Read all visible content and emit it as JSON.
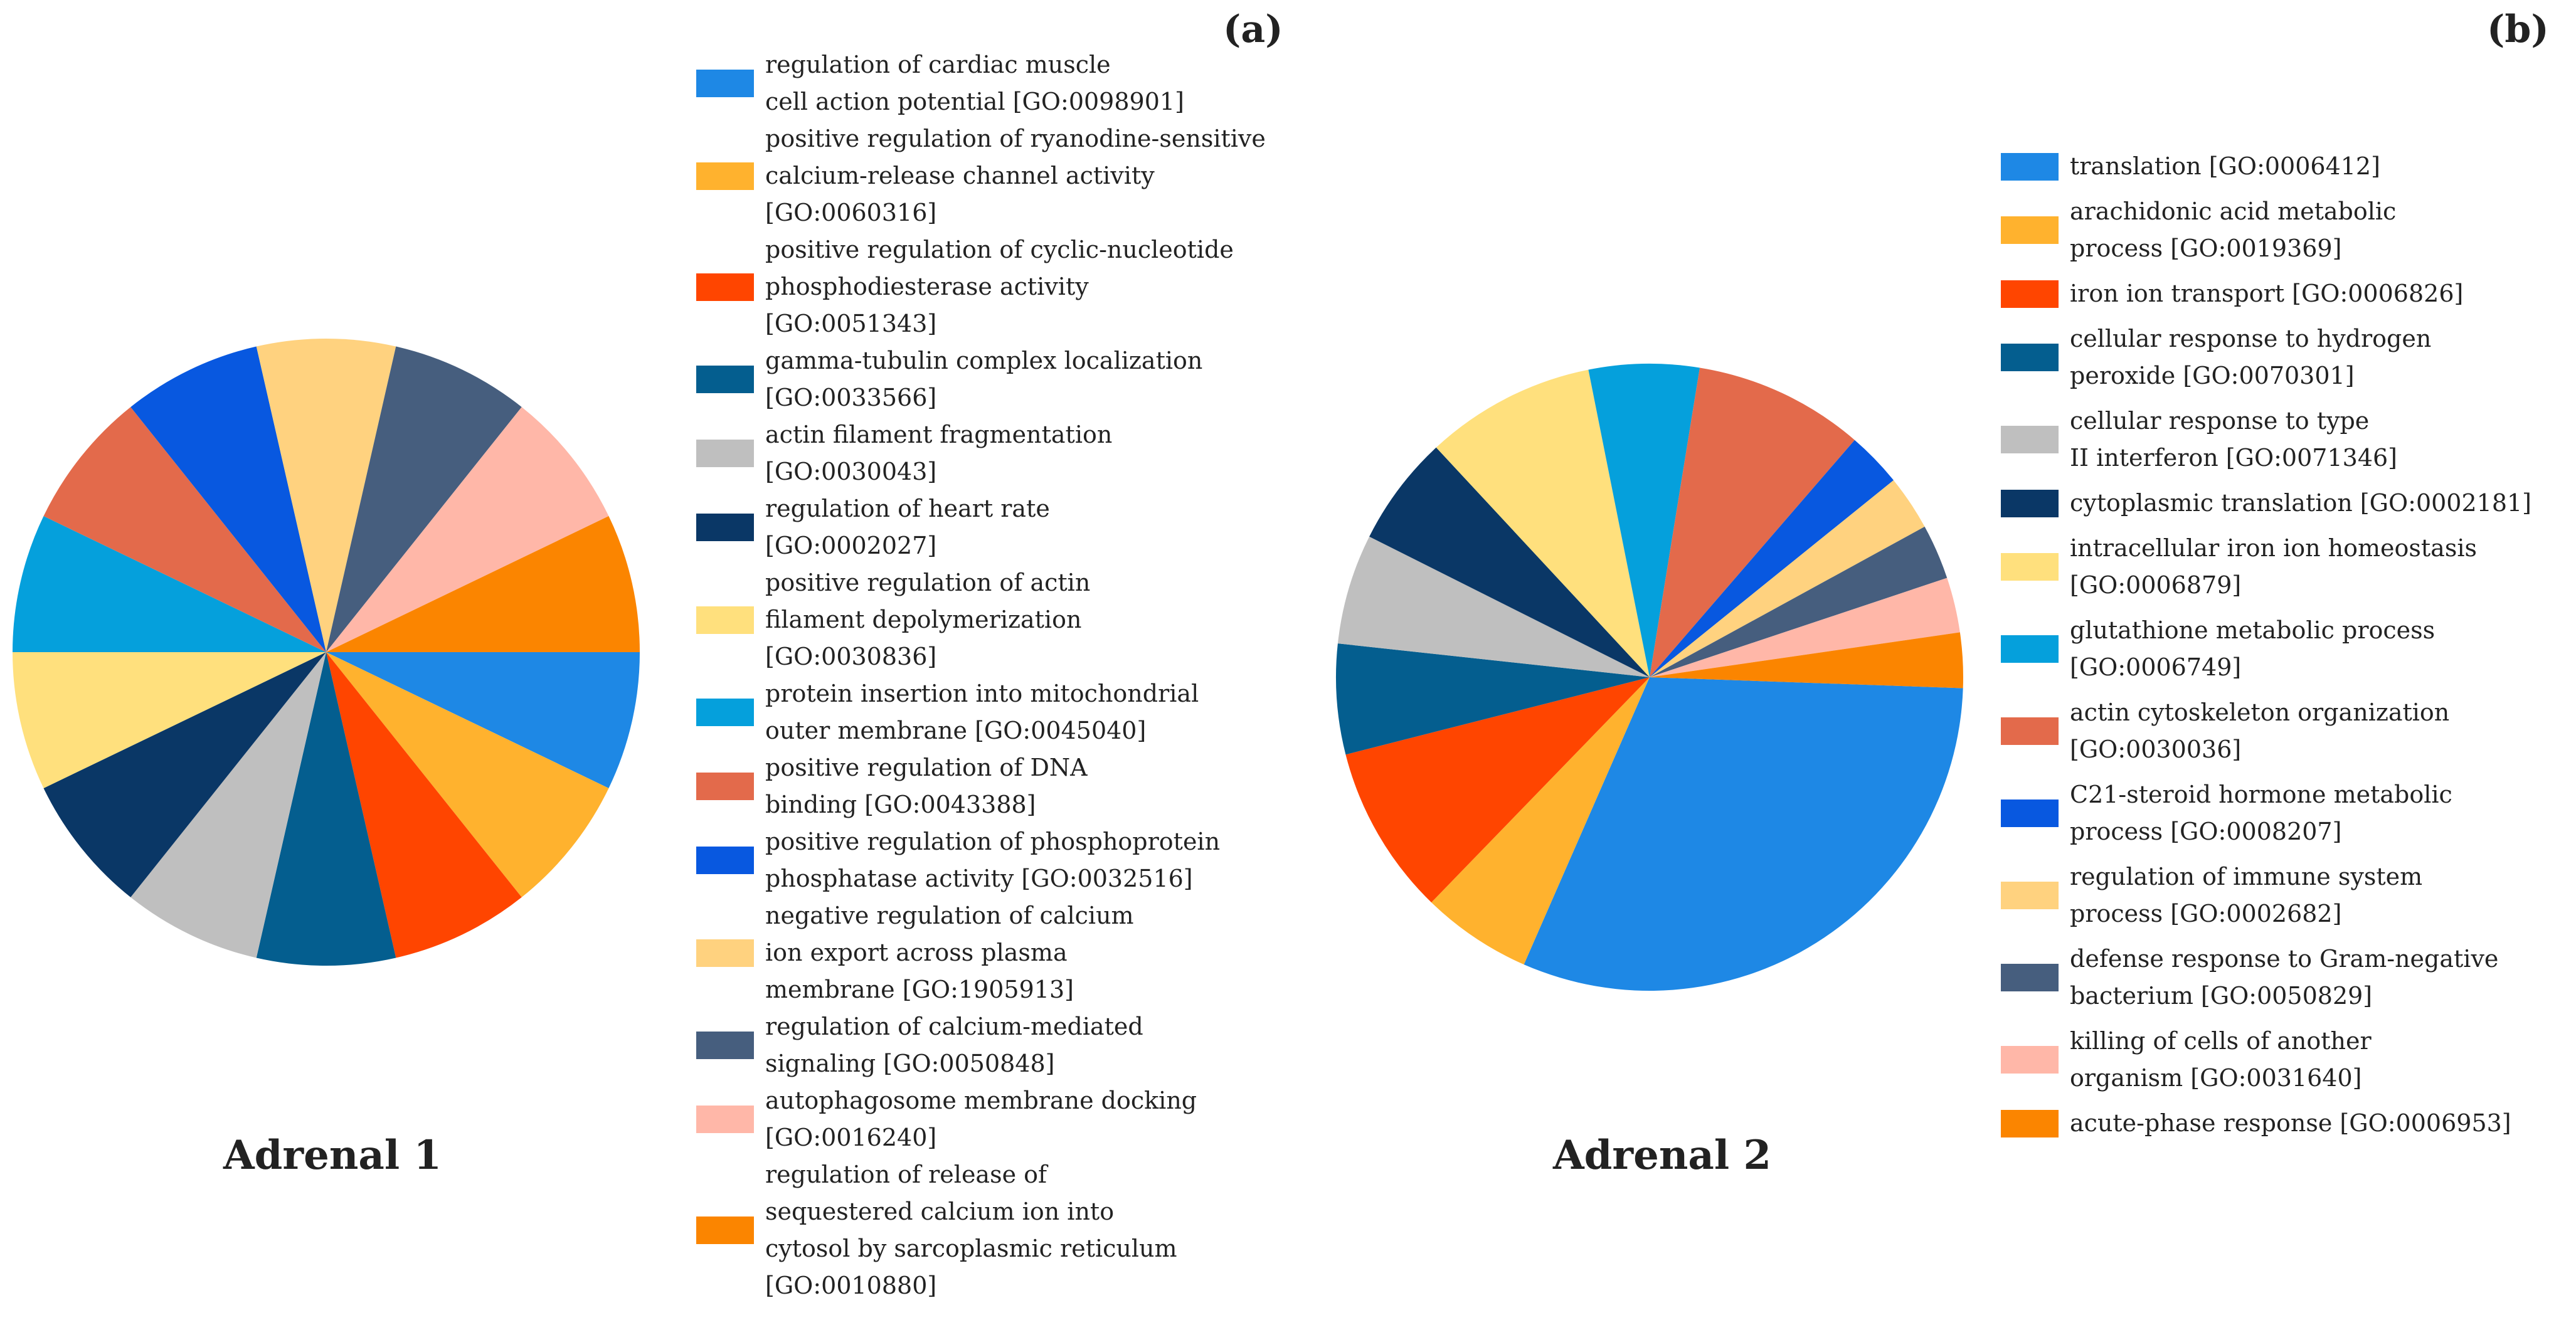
{
  "chart_data": [
    {
      "type": "pie",
      "panel_label": "(a)",
      "title": "Adrenal 1",
      "legend_placement": "right",
      "slices": [
        {
          "label": "regulation of cardiac muscle cell action potential [GO:0098901]",
          "value": 7.14,
          "color": "#1E88E5"
        },
        {
          "label": "positive regulation of ryanodine-sensitive calcium-release channel activity [GO:0060316]",
          "value": 7.14,
          "color": "#FFB22E"
        },
        {
          "label": "positive regulation of cyclic-nucleotide phosphodiesterase activity [GO:0051343]",
          "value": 7.14,
          "color": "#FF4500"
        },
        {
          "label": "gamma-tubulin complex localization [GO:0033566]",
          "value": 7.14,
          "color": "#045E8F"
        },
        {
          "label": "actin filament fragmentation [GO:0030043]",
          "value": 7.14,
          "color": "#BFBFBF"
        },
        {
          "label": "regulation of heart rate [GO:0002027]",
          "value": 7.14,
          "color": "#0A3766"
        },
        {
          "label": "positive regulation of actin filament depolymerization [GO:0030836]",
          "value": 7.14,
          "color": "#FFE07D"
        },
        {
          "label": "protein insertion into mitochondrial outer membrane [GO:0045040]",
          "value": 7.14,
          "color": "#05A0DC"
        },
        {
          "label": "positive regulation of DNA binding [GO:0043388]",
          "value": 7.14,
          "color": "#E36A4B"
        },
        {
          "label": "positive regulation of phosphoprotein phosphatase activity [GO:0032516]",
          "value": 7.14,
          "color": "#0858E0"
        },
        {
          "label": "negative regulation of calcium ion export across plasma membrane [GO:1905913]",
          "value": 7.14,
          "color": "#FFD27F"
        },
        {
          "label": "regulation of calcium-mediated signaling [GO:0050848]",
          "value": 7.14,
          "color": "#465E7E"
        },
        {
          "label": "autophagosome membrane docking [GO:0016240]",
          "value": 7.14,
          "color": "#FFB7A8"
        },
        {
          "label": "regulation of release of sequestered calcium ion into cytosol by sarcoplasmic reticulum [GO:0010880]",
          "value": 7.14,
          "color": "#FB8500"
        }
      ],
      "legend_lines": [
        [
          "regulation of cardiac muscle",
          "cell action potential [GO:0098901]"
        ],
        [
          "positive regulation of ryanodine-sensitive",
          "calcium-release channel activity",
          "[GO:0060316]"
        ],
        [
          "positive regulation of cyclic-nucleotide",
          "phosphodiesterase activity",
          "[GO:0051343]"
        ],
        [
          "gamma-tubulin complex localization",
          "[GO:0033566]"
        ],
        [
          "actin filament fragmentation",
          "[GO:0030043]"
        ],
        [
          "regulation of heart rate",
          "[GO:0002027]"
        ],
        [
          "positive regulation of actin",
          "filament depolymerization",
          "[GO:0030836]"
        ],
        [
          "protein insertion into mitochondrial",
          "outer membrane [GO:0045040]"
        ],
        [
          "positive regulation of DNA",
          "binding [GO:0043388]"
        ],
        [
          "positive regulation of phosphoprotein",
          "phosphatase activity [GO:0032516]"
        ],
        [
          "negative regulation of calcium",
          "ion export across plasma",
          "membrane [GO:1905913]"
        ],
        [
          "regulation of calcium-mediated",
          "signaling [GO:0050848]"
        ],
        [
          "autophagosome membrane docking",
          "[GO:0016240]"
        ],
        [
          "regulation of release of",
          "sequestered calcium ion into",
          "cytosol by sarcoplasmic reticulum",
          "[GO:0010880]"
        ]
      ]
    },
    {
      "type": "pie",
      "panel_label": "(b)",
      "title": "Adrenal 2",
      "legend_placement": "right",
      "slices": [
        {
          "label": "translation [GO:0006412]",
          "value": 30.0,
          "color": "#1E88E5"
        },
        {
          "label": "arachidonic acid metabolic process [GO:0019369]",
          "value": 5.5,
          "color": "#FFB22E"
        },
        {
          "label": "iron ion transport [GO:0006826]",
          "value": 8.5,
          "color": "#FF4500"
        },
        {
          "label": "cellular response to hydrogen peroxide [GO:0070301]",
          "value": 5.5,
          "color": "#045E8F"
        },
        {
          "label": "cellular response to type II interferon [GO:0071346]",
          "value": 5.5,
          "color": "#BFBFBF"
        },
        {
          "label": "cytoplasmic translation [GO:0002181]",
          "value": 5.5,
          "color": "#0A3766"
        },
        {
          "label": "intracellular iron ion homeostasis [GO:0006879]",
          "value": 8.5,
          "color": "#FFE07D"
        },
        {
          "label": "glutathione metabolic process [GO:0006749]",
          "value": 5.5,
          "color": "#05A0DC"
        },
        {
          "label": "actin cytoskeleton organization [GO:0030036]",
          "value": 8.5,
          "color": "#E36A4B"
        },
        {
          "label": "C21-steroid hormone metabolic process [GO:0008207]",
          "value": 2.75,
          "color": "#0858E0"
        },
        {
          "label": "regulation of immune system process [GO:0002682]",
          "value": 2.75,
          "color": "#FFD27F"
        },
        {
          "label": "defense response to Gram-negative bacterium [GO:0050829]",
          "value": 2.75,
          "color": "#465E7E"
        },
        {
          "label": "killing of cells of another organism [GO:0031640]",
          "value": 2.75,
          "color": "#FFB7A8"
        },
        {
          "label": "acute-phase response [GO:0006953]",
          "value": 2.75,
          "color": "#FB8500"
        }
      ],
      "legend_lines": [
        [
          "translation [GO:0006412]"
        ],
        [
          "arachidonic acid metabolic",
          "process [GO:0019369]"
        ],
        [
          "iron ion transport [GO:0006826]"
        ],
        [
          "cellular response to hydrogen",
          "peroxide [GO:0070301]"
        ],
        [
          "cellular response to type",
          "II interferon [GO:0071346]"
        ],
        [
          "cytoplasmic translation [GO:0002181]"
        ],
        [
          "intracellular iron ion homeostasis",
          "[GO:0006879]"
        ],
        [
          "glutathione metabolic process",
          "[GO:0006749]"
        ],
        [
          "actin cytoskeleton organization",
          "[GO:0030036]"
        ],
        [
          "C21-steroid hormone metabolic",
          "process [GO:0008207]"
        ],
        [
          "regulation of immune system",
          "process [GO:0002682]"
        ],
        [
          "defense response to Gram-negative",
          "bacterium [GO:0050829]"
        ],
        [
          "killing of cells of another",
          "organism [GO:0031640]"
        ],
        [
          "acute-phase response [GO:0006953]"
        ]
      ]
    }
  ]
}
